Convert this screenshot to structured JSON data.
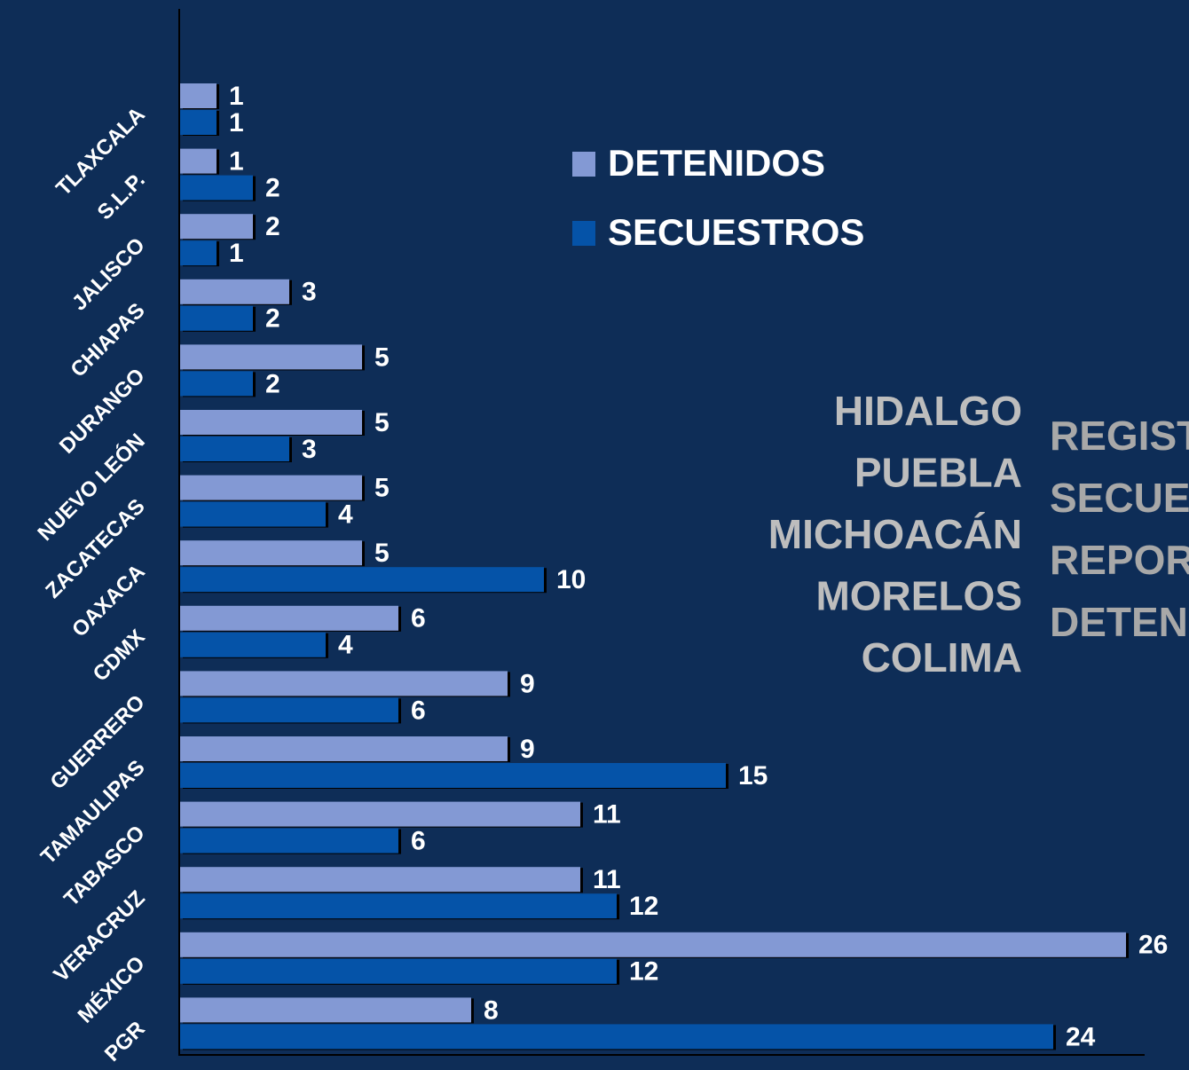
{
  "chart_data": {
    "type": "hbar",
    "categories": [
      "TLAXCALA",
      "S.L.P.",
      "JALISCO",
      "CHIAPAS",
      "DURANGO",
      "NUEVO LEÓN",
      "ZACATECAS",
      "OAXACA",
      "CDMX",
      "GUERRERO",
      "TAMAULIPAS",
      "TABASCO",
      "VERACRUZ",
      "MÉXICO",
      "PGR"
    ],
    "series": [
      {
        "name": "DETENIDOS",
        "color": "#8399d4",
        "values": [
          1,
          1,
          2,
          3,
          5,
          5,
          5,
          5,
          6,
          9,
          9,
          11,
          11,
          26,
          8
        ]
      },
      {
        "name": "SECUESTROS",
        "color": "#0553a8",
        "values": [
          1,
          2,
          1,
          2,
          2,
          3,
          4,
          10,
          4,
          6,
          15,
          6,
          12,
          12,
          24
        ]
      }
    ],
    "annotations": [
      "HIDALGO",
      "PUEBLA",
      "MICHOACÁN",
      "MORELOS",
      "COLIMA"
    ],
    "side_text": [
      "REGIST",
      "SECUES",
      "REPORT",
      "DETENI"
    ]
  }
}
